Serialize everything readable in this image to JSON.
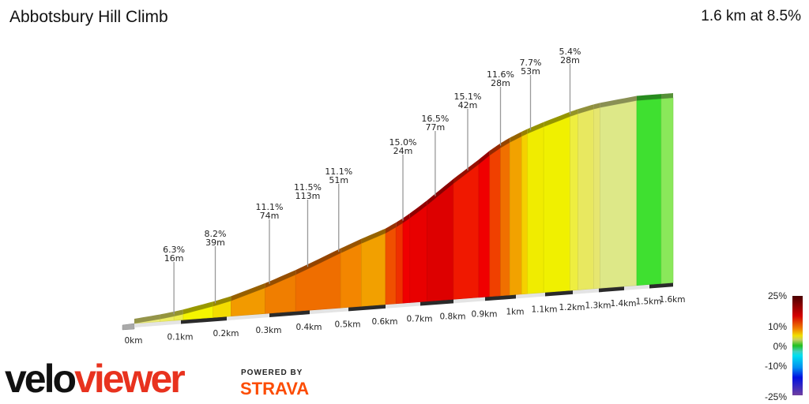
{
  "header": {
    "title": "Abbotsbury Hill Climb",
    "summary": "1.6 km at 8.5%"
  },
  "chart_data": {
    "type": "area",
    "title": "Abbotsbury Hill Climb",
    "xlabel": "",
    "ylabel": "",
    "x_ticks": [
      "0km",
      "0.1km",
      "0.2km",
      "0.3km",
      "0.4km",
      "0.5km",
      "0.6km",
      "0.7km",
      "0.8km",
      "0.9km",
      "1km",
      "1.1km",
      "1.2km",
      "1.3km",
      "1.4km",
      "1.5km",
      "1.6km"
    ],
    "segments": [
      {
        "start_km": 0,
        "end_km": 0.055,
        "gradient": 3,
        "color": "#eeee78"
      },
      {
        "start_km": 0.055,
        "end_km": 0.085,
        "gradient": 4,
        "color": "#eeee62"
      },
      {
        "start_km": 0.085,
        "end_km": 0.105,
        "gradient": 5,
        "color": "#eeee4a"
      },
      {
        "start_km": 0.105,
        "end_km": 0.17,
        "gradient": 6,
        "color": "#f5f500"
      },
      {
        "start_km": 0.17,
        "end_km": 0.21,
        "gradient": 7,
        "color": "#f3dc00"
      },
      {
        "start_km": 0.21,
        "end_km": 0.29,
        "gradient": 9,
        "color": "#f29a00"
      },
      {
        "start_km": 0.29,
        "end_km": 0.365,
        "gradient": 10,
        "color": "#f07e00"
      },
      {
        "start_km": 0.365,
        "end_km": 0.48,
        "gradient": 11,
        "color": "#ef6e00"
      },
      {
        "start_km": 0.48,
        "end_km": 0.535,
        "gradient": 10,
        "color": "#f38600"
      },
      {
        "start_km": 0.535,
        "end_km": 0.6,
        "gradient": 9,
        "color": "#f2a000"
      },
      {
        "start_km": 0.6,
        "end_km": 0.63,
        "gradient": 12,
        "color": "#f05000"
      },
      {
        "start_km": 0.63,
        "end_km": 0.65,
        "gradient": 13,
        "color": "#ef3000"
      },
      {
        "start_km": 0.65,
        "end_km": 0.67,
        "gradient": 15,
        "color": "#f00000"
      },
      {
        "start_km": 0.67,
        "end_km": 0.72,
        "gradient": 16,
        "color": "#e80000"
      },
      {
        "start_km": 0.72,
        "end_km": 0.8,
        "gradient": 17,
        "color": "#dd0000"
      },
      {
        "start_km": 0.8,
        "end_km": 0.88,
        "gradient": 15,
        "color": "#f01800"
      },
      {
        "start_km": 0.88,
        "end_km": 0.915,
        "gradient": 16,
        "color": "#f00000"
      },
      {
        "start_km": 0.915,
        "end_km": 0.95,
        "gradient": 13,
        "color": "#f04000"
      },
      {
        "start_km": 0.95,
        "end_km": 0.98,
        "gradient": 11,
        "color": "#f07000"
      },
      {
        "start_km": 0.98,
        "end_km": 1.02,
        "gradient": 9,
        "color": "#f2a200"
      },
      {
        "start_km": 1.02,
        "end_km": 1.04,
        "gradient": 8,
        "color": "#f5d000"
      },
      {
        "start_km": 1.04,
        "end_km": 1.095,
        "gradient": 7,
        "color": "#f0ec00"
      },
      {
        "start_km": 1.095,
        "end_km": 1.19,
        "gradient": 6,
        "color": "#f0f000"
      },
      {
        "start_km": 1.19,
        "end_km": 1.22,
        "gradient": 5,
        "color": "#eeee40"
      },
      {
        "start_km": 1.22,
        "end_km": 1.28,
        "gradient": 4,
        "color": "#e8e860"
      },
      {
        "start_km": 1.28,
        "end_km": 1.305,
        "gradient": 3,
        "color": "#e6e670"
      },
      {
        "start_km": 1.305,
        "end_km": 1.45,
        "gradient": 2,
        "color": "#dde888"
      },
      {
        "start_km": 1.45,
        "end_km": 1.55,
        "gradient": 0,
        "color": "#3fe030"
      },
      {
        "start_km": 1.55,
        "end_km": 1.6,
        "gradient": 0,
        "color": "#8ae85a"
      }
    ],
    "annotations": [
      {
        "km": 0.085,
        "gradient": "6.3%",
        "length": "16m"
      },
      {
        "km": 0.175,
        "gradient": "8.2%",
        "length": "39m"
      },
      {
        "km": 0.3,
        "gradient": "11.1%",
        "length": "74m"
      },
      {
        "km": 0.395,
        "gradient": "11.5%",
        "length": "113m"
      },
      {
        "km": 0.475,
        "gradient": "11.1%",
        "length": "51m"
      },
      {
        "km": 0.65,
        "gradient": "15.0%",
        "length": "24m"
      },
      {
        "km": 0.745,
        "gradient": "16.5%",
        "length": "77m"
      },
      {
        "km": 0.845,
        "gradient": "15.1%",
        "length": "42m"
      },
      {
        "km": 0.95,
        "gradient": "11.6%",
        "length": "28m"
      },
      {
        "km": 1.05,
        "gradient": "7.7%",
        "length": "53m"
      },
      {
        "km": 1.19,
        "gradient": "5.4%",
        "length": "28m"
      }
    ],
    "legend": {
      "labels": [
        "25%",
        "10%",
        "0%",
        "-10%",
        "-25%"
      ],
      "colors": [
        "#4a0000",
        "#d40000",
        "#f08000",
        "#f0e000",
        "#c8d060",
        "#20c020",
        "#40d0c0",
        "#00e0f0",
        "#0090f0",
        "#0010e0",
        "#7040a0"
      ]
    }
  },
  "branding": {
    "logo_a": "velo",
    "logo_b": "viewer",
    "powered": "POWERED BY",
    "strava": "STRAVA"
  }
}
